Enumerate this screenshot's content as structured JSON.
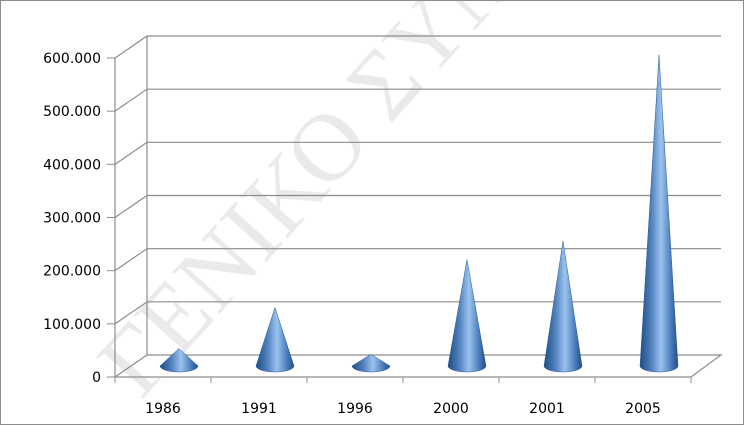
{
  "chart_data": {
    "type": "bar",
    "style": "3d-cone",
    "title": "",
    "xlabel": "",
    "ylabel": "",
    "categories": [
      "1986",
      "1991",
      "1996",
      "2000",
      "2001",
      "2005"
    ],
    "values": [
      33000,
      110000,
      22000,
      200000,
      235000,
      585000
    ],
    "ylim": [
      0,
      600000
    ],
    "yticks": [
      "0",
      "100.000",
      "200.000",
      "300.000",
      "400.000",
      "500.000",
      "600.000"
    ],
    "grid": true,
    "legend": "none"
  },
  "watermark": {
    "text": "ΓΕΝΙΚΟ ΣΥΜΒΟΥΛΙΟ ΓΙΑ ΤΟ ΔΗΜΙΟ",
    "reproduced_as_image": true
  },
  "colors": {
    "cone_light": "#9cc3ee",
    "cone_mid": "#4f81bd",
    "cone_dark": "#1f4e85",
    "grid": "#8c8c8c",
    "wall": "#ffffff"
  }
}
